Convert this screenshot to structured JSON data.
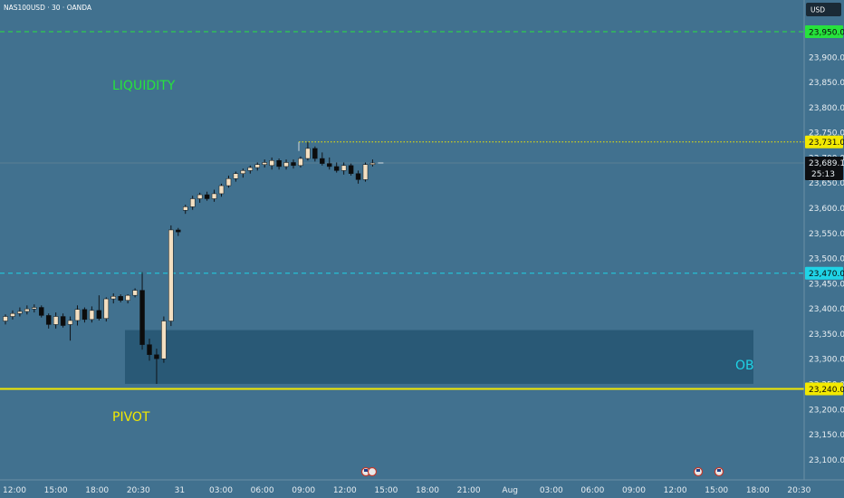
{
  "header": {
    "symbol_line": "NAS100USD · 30 · OANDA",
    "currency": "USD"
  },
  "colors": {
    "background": "#41718f",
    "bull_candle": "#f3dfc1",
    "bear_candle": "#0c0c0c",
    "green_level": "#26e33c",
    "cyan_level": "#1fd3e6",
    "yellow_level": "#f3e900",
    "ob_zone": "#265572",
    "current_price_bg": "#0d0f12",
    "axis_text": "#e8eef2"
  },
  "annotations": {
    "liquidity": "LIQUIDITY",
    "pivot": "PIVOT",
    "ob": "OB"
  },
  "chart_data": {
    "type": "candlestick",
    "title": "NAS100USD · 30 · OANDA",
    "ylim": [
      23070,
      23995
    ],
    "y_ticks": [
      23100,
      23150,
      23200,
      23250,
      23300,
      23350,
      23400,
      23450,
      23500,
      23550,
      23600,
      23650,
      23700,
      23750,
      23800,
      23850,
      23900
    ],
    "y_tick_labels": [
      "23,100.0",
      "23,150.0",
      "23,200.0",
      "23,250.0",
      "23,300.0",
      "23,350.0",
      "23,400.0",
      "23,450.0",
      "23,500.0",
      "23,550.0",
      "23,600.0",
      "23,650.0",
      "23,700.0",
      "23,750.0",
      "23,800.0",
      "23,850.0",
      "23,900.0"
    ],
    "x_labels": [
      "12:00",
      "15:00",
      "18:00",
      "20:30",
      "31",
      "03:00",
      "06:00",
      "09:00",
      "12:00",
      "15:00",
      "18:00",
      "21:00",
      "Aug",
      "03:00",
      "06:00",
      "09:00",
      "12:00",
      "15:00",
      "18:00",
      "20:30"
    ],
    "candles_step_minutes": 30,
    "candles": [
      {
        "o": 23375,
        "h": 23388,
        "l": 23368,
        "c": 23384
      },
      {
        "o": 23384,
        "h": 23396,
        "l": 23378,
        "c": 23390
      },
      {
        "o": 23390,
        "h": 23402,
        "l": 23384,
        "c": 23394
      },
      {
        "o": 23394,
        "h": 23406,
        "l": 23388,
        "c": 23399
      },
      {
        "o": 23399,
        "h": 23408,
        "l": 23392,
        "c": 23402
      },
      {
        "o": 23402,
        "h": 23406,
        "l": 23382,
        "c": 23386
      },
      {
        "o": 23386,
        "h": 23390,
        "l": 23360,
        "c": 23368
      },
      {
        "o": 23368,
        "h": 23392,
        "l": 23360,
        "c": 23384
      },
      {
        "o": 23384,
        "h": 23390,
        "l": 23362,
        "c": 23366
      },
      {
        "o": 23368,
        "h": 23384,
        "l": 23336,
        "c": 23376
      },
      {
        "o": 23376,
        "h": 23406,
        "l": 23366,
        "c": 23398
      },
      {
        "o": 23398,
        "h": 23402,
        "l": 23372,
        "c": 23378
      },
      {
        "o": 23378,
        "h": 23404,
        "l": 23372,
        "c": 23396
      },
      {
        "o": 23396,
        "h": 23426,
        "l": 23376,
        "c": 23380
      },
      {
        "o": 23380,
        "h": 23422,
        "l": 23374,
        "c": 23419
      },
      {
        "o": 23419,
        "h": 23430,
        "l": 23410,
        "c": 23424
      },
      {
        "o": 23424,
        "h": 23428,
        "l": 23412,
        "c": 23416
      },
      {
        "o": 23416,
        "h": 23428,
        "l": 23410,
        "c": 23426
      },
      {
        "o": 23426,
        "h": 23440,
        "l": 23422,
        "c": 23436
      },
      {
        "o": 23436,
        "h": 23472,
        "l": 23318,
        "c": 23328
      },
      {
        "o": 23328,
        "h": 23340,
        "l": 23296,
        "c": 23308
      },
      {
        "o": 23308,
        "h": 23320,
        "l": 23250,
        "c": 23300
      },
      {
        "o": 23300,
        "h": 23384,
        "l": 23292,
        "c": 23375
      },
      {
        "o": 23375,
        "h": 23565,
        "l": 23365,
        "c": 23556
      },
      {
        "o": 23556,
        "h": 23560,
        "l": 23544,
        "c": 23552
      },
      {
        "o": 23595,
        "h": 23606,
        "l": 23588,
        "c": 23602
      },
      {
        "o": 23602,
        "h": 23624,
        "l": 23596,
        "c": 23618
      },
      {
        "o": 23618,
        "h": 23630,
        "l": 23610,
        "c": 23626
      },
      {
        "o": 23626,
        "h": 23632,
        "l": 23614,
        "c": 23618
      },
      {
        "o": 23618,
        "h": 23636,
        "l": 23612,
        "c": 23628
      },
      {
        "o": 23628,
        "h": 23648,
        "l": 23622,
        "c": 23644
      },
      {
        "o": 23644,
        "h": 23664,
        "l": 23640,
        "c": 23658
      },
      {
        "o": 23658,
        "h": 23672,
        "l": 23652,
        "c": 23668
      },
      {
        "o": 23668,
        "h": 23678,
        "l": 23660,
        "c": 23674
      },
      {
        "o": 23674,
        "h": 23684,
        "l": 23668,
        "c": 23680
      },
      {
        "o": 23680,
        "h": 23690,
        "l": 23674,
        "c": 23686
      },
      {
        "o": 23686,
        "h": 23696,
        "l": 23680,
        "c": 23690
      },
      {
        "o": 23684,
        "h": 23700,
        "l": 23676,
        "c": 23694
      },
      {
        "o": 23694,
        "h": 23698,
        "l": 23676,
        "c": 23682
      },
      {
        "o": 23682,
        "h": 23696,
        "l": 23676,
        "c": 23690
      },
      {
        "o": 23690,
        "h": 23696,
        "l": 23678,
        "c": 23684
      },
      {
        "o": 23684,
        "h": 23702,
        "l": 23680,
        "c": 23698
      },
      {
        "o": 23698,
        "h": 23731,
        "l": 23694,
        "c": 23718
      },
      {
        "o": 23718,
        "h": 23722,
        "l": 23692,
        "c": 23698
      },
      {
        "o": 23698,
        "h": 23710,
        "l": 23684,
        "c": 23688
      },
      {
        "o": 23688,
        "h": 23700,
        "l": 23676,
        "c": 23682
      },
      {
        "o": 23682,
        "h": 23690,
        "l": 23670,
        "c": 23674
      },
      {
        "o": 23674,
        "h": 23690,
        "l": 23666,
        "c": 23684
      },
      {
        "o": 23684,
        "h": 23688,
        "l": 23664,
        "c": 23668
      },
      {
        "o": 23668,
        "h": 23674,
        "l": 23648,
        "c": 23656
      },
      {
        "o": 23656,
        "h": 23690,
        "l": 23652,
        "c": 23686
      },
      {
        "o": 23686,
        "h": 23696,
        "l": 23682,
        "c": 23689
      }
    ],
    "levels": [
      {
        "name": "23,950.0",
        "price": 23950,
        "style": "dashed",
        "color": "#26e33c"
      },
      {
        "name": "23,731.0",
        "price": 23731,
        "style": "dotted",
        "color": "#f3e900"
      },
      {
        "name": "23,470.0",
        "price": 23470,
        "style": "dashed",
        "color": "#1fd3e6"
      },
      {
        "name": "23,240.0",
        "price": 23240,
        "style": "solid",
        "color": "#f3e900"
      }
    ],
    "current_price": {
      "label": "23,689.1",
      "value": 23689.1,
      "countdown": "25:13"
    },
    "zone": {
      "label": "OB",
      "top": 23357,
      "bottom": 23250
    },
    "grid": false,
    "events": [
      {
        "icon": "us-flag-icon",
        "count": 2
      },
      {
        "icon": "us-flag-icon",
        "count": 1
      },
      {
        "icon": "us-flag-icon",
        "count": 1
      }
    ]
  }
}
